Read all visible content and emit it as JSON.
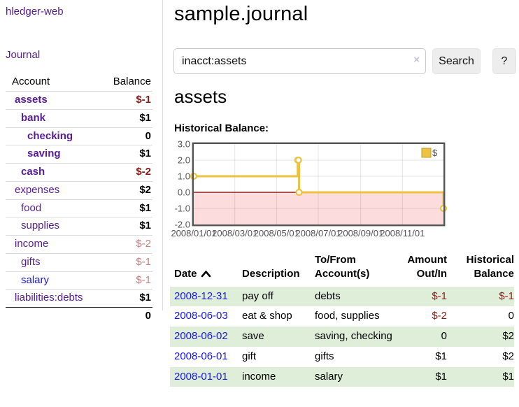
{
  "sidebar": {
    "brand": "hledger-web",
    "journal_label": "Journal",
    "accounts_table": {
      "headers": [
        "Account",
        "Balance"
      ],
      "rows": [
        {
          "label": "assets",
          "balance": "$-1",
          "indent": 1,
          "emph": true,
          "neg": "strong"
        },
        {
          "label": "bank",
          "balance": "$1",
          "indent": 2,
          "emph": true,
          "neg": "none"
        },
        {
          "label": "checking",
          "balance": "0",
          "indent": 3,
          "emph": true,
          "neg": "none"
        },
        {
          "label": "saving",
          "balance": "$1",
          "indent": 3,
          "emph": true,
          "neg": "none"
        },
        {
          "label": "cash",
          "balance": "$-2",
          "indent": 2,
          "emph": true,
          "neg": "strong"
        },
        {
          "label": "expenses",
          "balance": "$2",
          "indent": 1,
          "emph": false,
          "neg": "none"
        },
        {
          "label": "food",
          "balance": "$1",
          "indent": 2,
          "emph": false,
          "neg": "none"
        },
        {
          "label": "supplies",
          "balance": "$1",
          "indent": 2,
          "emph": false,
          "neg": "none"
        },
        {
          "label": "income",
          "balance": "$-2",
          "indent": 1,
          "emph": false,
          "neg": "faded"
        },
        {
          "label": "gifts",
          "balance": "$-1",
          "indent": 2,
          "emph": false,
          "neg": "faded"
        },
        {
          "label": "salary",
          "balance": "$-1",
          "indent": 2,
          "emph": false,
          "neg": "faded",
          "link_color": "blue"
        },
        {
          "label": "liabilities:debts",
          "balance": "$1",
          "indent": 1,
          "emph": false,
          "neg": "none"
        }
      ],
      "total": "0"
    }
  },
  "header": {
    "title": "sample.journal"
  },
  "search": {
    "value": "inacct:assets",
    "clear_icon": "×",
    "button_label": "Search",
    "help_label": "?"
  },
  "account_page": {
    "heading": "assets",
    "chart_label": "Historical Balance:"
  },
  "chart_data": {
    "type": "line",
    "title": "Historical Balance",
    "step": true,
    "xlim": [
      "2008-01-01",
      "2008-12-31"
    ],
    "ylim": [
      -2,
      3
    ],
    "y_ticks": [
      "3.0",
      "2.0",
      "1.0",
      "0.0",
      "-1.0",
      "-2.0"
    ],
    "x_ticks": [
      "2008/01/01",
      "2008/03/01",
      "2008/05/01",
      "2008/07/01",
      "2008/09/01",
      "2008/11/01"
    ],
    "legend_position": "top-right",
    "grid": true,
    "series": [
      {
        "name": "$",
        "color": "#edc240",
        "points": [
          {
            "date": "2008-01-01",
            "value": 1
          },
          {
            "date": "2008-06-01",
            "value": 2
          },
          {
            "date": "2008-06-02",
            "value": 2
          },
          {
            "date": "2008-06-03",
            "value": 0
          },
          {
            "date": "2008-12-31",
            "value": -1
          }
        ]
      }
    ],
    "negative_region_fill": "#fcdcdc",
    "zero_line_color": "#8f2020",
    "frame_color": "#545454",
    "tick_label_color": "#545454"
  },
  "register_table": {
    "headers": [
      "Date",
      "Description",
      "To/From Account(s)",
      "Amount Out/In",
      "Historical Balance"
    ],
    "rows": [
      {
        "date": "2008-12-31",
        "description": "pay off",
        "accounts": "debts",
        "amount": "$-1",
        "amount_negative": true,
        "balance": "$-1",
        "balance_negative": true
      },
      {
        "date": "2008-06-03",
        "description": "eat & shop",
        "accounts": "food, supplies",
        "amount": "$-2",
        "amount_negative": true,
        "balance": "0",
        "balance_negative": false
      },
      {
        "date": "2008-06-02",
        "description": "save",
        "accounts": "saving, checking",
        "amount": "0",
        "amount_negative": false,
        "balance": "$2",
        "balance_negative": false
      },
      {
        "date": "2008-06-01",
        "description": "gift",
        "accounts": "gifts",
        "amount": "$1",
        "amount_negative": false,
        "balance": "$2",
        "balance_negative": false
      },
      {
        "date": "2008-01-01",
        "description": "income",
        "accounts": "salary",
        "amount": "$1",
        "amount_negative": false,
        "balance": "$1",
        "balance_negative": false
      }
    ]
  },
  "colors": {
    "link_purple": "#571c97",
    "link_blue": "#1717e6",
    "negative_strong": "#8b1a1a",
    "negative_faded": "#c98080",
    "row_green": "#dfeed8",
    "divider": "#dddddd",
    "button_bg": "#ededed",
    "chart_frame": "#545454"
  }
}
